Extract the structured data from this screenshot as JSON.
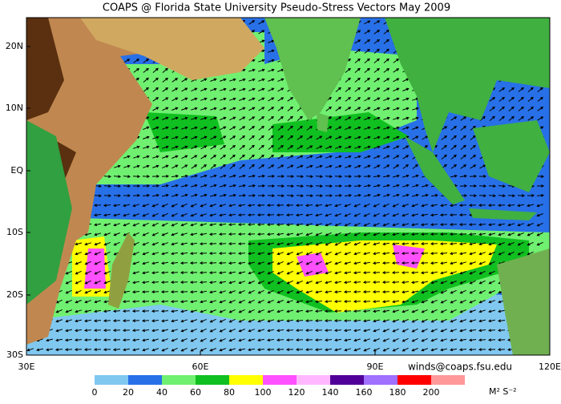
{
  "title": "COAPS @ Florida State University Pseudo-Stress Vectors May 2009",
  "map": {
    "lat_labels": [
      "20N",
      "10N",
      "EQ",
      "10S",
      "20S",
      "30S"
    ],
    "lon_labels": [
      "30E",
      "60E",
      "90E",
      "120E"
    ]
  },
  "credit": "winds@coaps.fsu.edu",
  "colorbar": {
    "labels": [
      "0",
      "20",
      "40",
      "60",
      "80",
      "100",
      "120",
      "140",
      "160",
      "180",
      "200"
    ],
    "colors": [
      "#80c8f0",
      "#2870e8",
      "#70f070",
      "#10c020",
      "#ffff00",
      "#ff50ff",
      "#ffb8ff",
      "#500098",
      "#a070ff",
      "#ff0000",
      "#ff9898"
    ],
    "unit": "M² S⁻²"
  }
}
